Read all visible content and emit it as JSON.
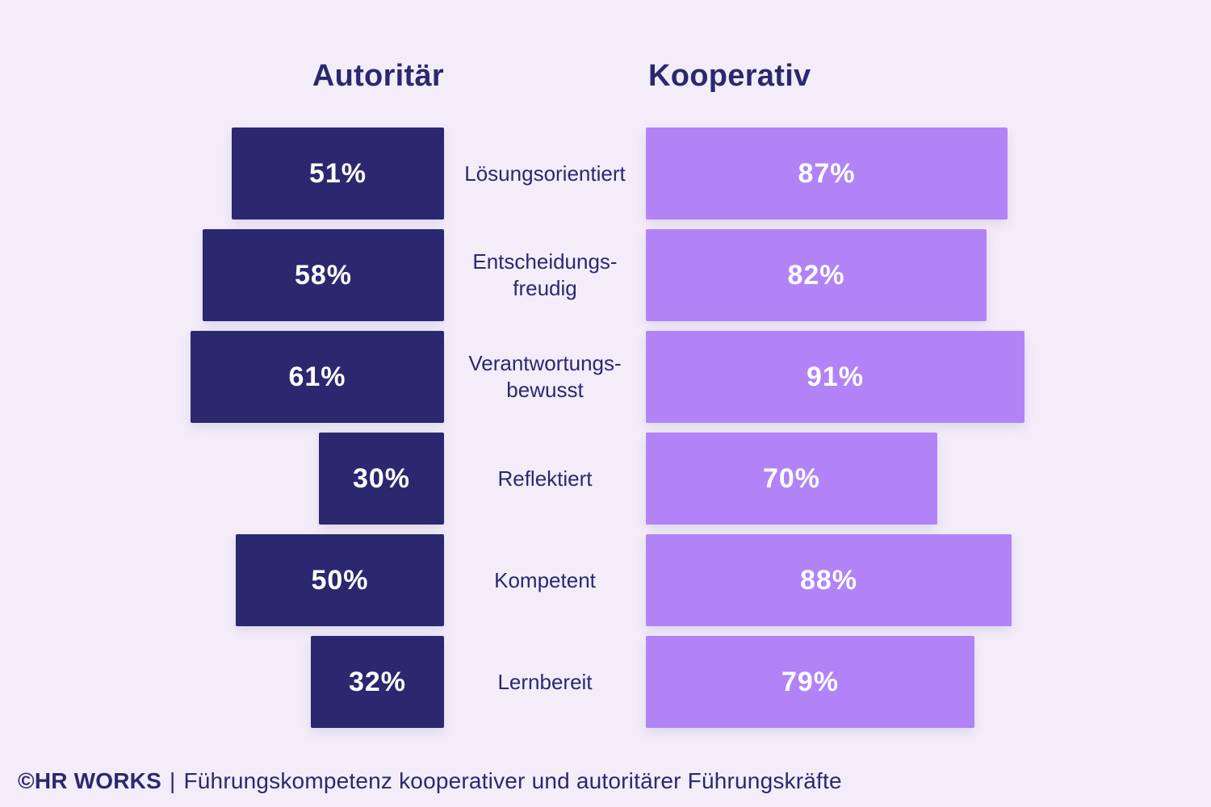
{
  "header": {
    "left_title": "Autoritär",
    "right_title": "Kooperativ"
  },
  "chart_data": {
    "type": "bar",
    "orientation": "horizontal-bidirectional",
    "title": "Führungskompetenz kooperativer und autoritärer Führungskräfte",
    "categories": [
      "Lösungsorientiert",
      "Entscheidungsfreudig",
      "Verantwortungsbewusst",
      "Reflektiert",
      "Kompetent",
      "Lernbereit"
    ],
    "categories_display": [
      "Lösungsorientiert",
      "Entscheidungs-\nfreudig",
      "Verantwortungs-\nbewusst",
      "Reflektiert",
      "Kompetent",
      "Lernbereit"
    ],
    "series": [
      {
        "name": "Autoritär",
        "color": "#2b2870",
        "values": [
          51,
          58,
          61,
          30,
          50,
          32
        ],
        "labels": [
          "51%",
          "58%",
          "61%",
          "30%",
          "50%",
          "32%"
        ]
      },
      {
        "name": "Kooperativ",
        "color": "#b183f7",
        "values": [
          87,
          82,
          91,
          70,
          88,
          79
        ],
        "labels": [
          "87%",
          "82%",
          "91%",
          "70%",
          "88%",
          "79%"
        ]
      }
    ],
    "value_range": [
      0,
      100
    ],
    "grid": false,
    "legend_position": "top-as-column-headers"
  },
  "footer": {
    "brand": "©HR WORKS",
    "separator": "|",
    "caption": "Führungskompetenz kooperativer und autoritärer Führungskräfte"
  },
  "colors": {
    "background": "#f3edfa",
    "autoritaer_bar": "#2b2870",
    "kooperativ_bar": "#b183f7",
    "text_navy": "#2b2870",
    "bar_value_text": "#ffffff"
  }
}
